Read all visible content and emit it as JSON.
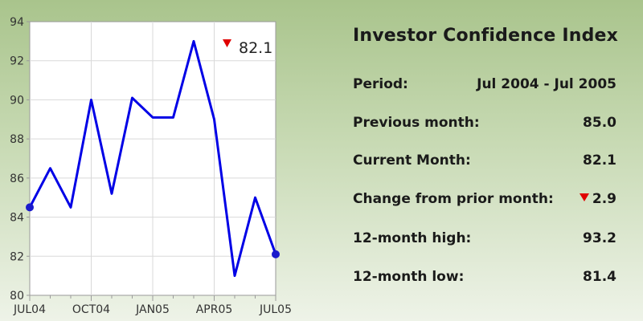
{
  "chart_data": {
    "type": "line",
    "x": [
      "Jul 2004",
      "Aug 2004",
      "Sep 2004",
      "Oct 2004",
      "Nov 2004",
      "Dec 2004",
      "Jan 2005",
      "Feb 2005",
      "Mar 2005",
      "Apr 2005",
      "May 2005",
      "Jun 2005",
      "Jul 2005"
    ],
    "values": [
      84.5,
      86.5,
      84.5,
      90.0,
      85.2,
      90.1,
      89.1,
      89.1,
      93.0,
      89.0,
      81.0,
      85.0,
      82.1
    ],
    "tick_labels": [
      "JUL04",
      "OCT04",
      "JAN05",
      "APR05",
      "JUL05"
    ],
    "ylim": [
      80,
      94
    ],
    "yticks": [
      80,
      82,
      84,
      86,
      88,
      90,
      92,
      94
    ],
    "grid": true,
    "line_color": "#0000e6",
    "marker_color": "#1a1acc",
    "callout": {
      "value": "82.1",
      "arrow_color": "#e00000"
    }
  },
  "panel": {
    "title": "Investor Confidence Index",
    "rows": [
      {
        "label": "Period:",
        "value": "Jul 2004 - Jul 2005"
      },
      {
        "label": "Previous month:",
        "value": "85.0"
      },
      {
        "label": "Current Month:",
        "value": "82.1"
      },
      {
        "label": "Change from prior month:",
        "value": "2.9",
        "direction": "down"
      },
      {
        "label": "12-month high:",
        "value": "93.2"
      },
      {
        "label": "12-month low:",
        "value": "81.4"
      }
    ]
  }
}
